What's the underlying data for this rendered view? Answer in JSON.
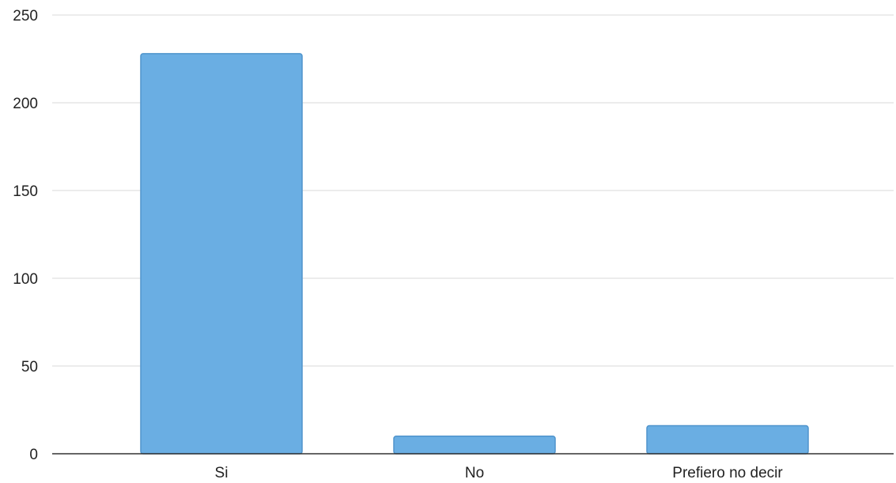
{
  "chart_data": {
    "type": "bar",
    "categories": [
      "Si",
      "No",
      "Prefiero no decir"
    ],
    "values": [
      228,
      10,
      16
    ],
    "title": "",
    "xlabel": "",
    "ylabel": "",
    "ylim": [
      0,
      250
    ],
    "yticks": [
      0,
      50,
      100,
      150,
      200,
      250
    ],
    "grid": true,
    "bar_color": "#6aaee3",
    "bar_edge_color": "#4f94cc"
  }
}
